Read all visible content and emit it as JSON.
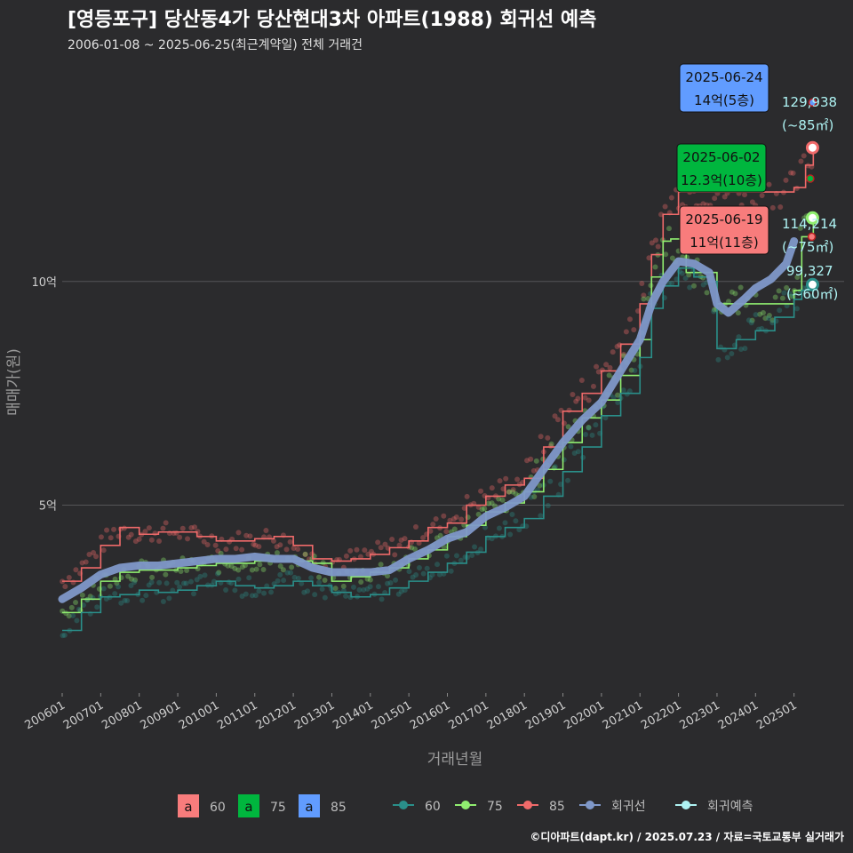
{
  "header": {
    "title": "[영등포구] 당산동4가 당산현대3차 아파트(1988) 회귀선 예측",
    "subtitle": "2006-01-08 ~ 2025-06-25(최근계약일) 전체 거래건"
  },
  "caption": "©디아파트(dapt.kr) / 2025.07.23 / 자료=국토교통부 실거래가",
  "colors": {
    "background": "#2b2b2d",
    "s60": "#2a8f8a",
    "s75": "#90ee70",
    "s85": "#f06a6a",
    "regression": "#7f98c9",
    "forecast": "#aef3f3",
    "label60": "#f87c7c",
    "label75": "#00b63e",
    "label85": "#619cff"
  },
  "chart_data": {
    "type": "line",
    "title": "[영등포구] 당산동4가 당산현대3차 아파트(1988) 회귀선 예측",
    "xlabel": "거래년월",
    "ylabel": "매매가(원)",
    "x_ticks": [
      "200601",
      "200701",
      "200801",
      "200901",
      "201001",
      "201101",
      "201201",
      "201301",
      "201401",
      "201501",
      "201601",
      "201701",
      "201801",
      "201901",
      "202001",
      "202101",
      "202201",
      "202301",
      "202401",
      "202501"
    ],
    "x_range": [
      2006.0,
      2026.3
    ],
    "ylim": [
      0.8,
      15.1
    ],
    "y_ticks": [
      {
        "value": 5,
        "label": "5억"
      },
      {
        "value": 10,
        "label": "10억"
      }
    ],
    "series": [
      {
        "name": "85",
        "key": "s85",
        "x": [
          2006.0,
          2006.5,
          2007.0,
          2007.5,
          2008.0,
          2008.5,
          2009.0,
          2009.5,
          2010.0,
          2010.5,
          2011.0,
          2011.5,
          2012.0,
          2012.5,
          2013.0,
          2013.5,
          2014.0,
          2014.5,
          2015.0,
          2015.5,
          2016.0,
          2016.5,
          2017.0,
          2017.5,
          2018.0,
          2018.5,
          2019.0,
          2019.5,
          2020.0,
          2020.5,
          2021.0,
          2021.3,
          2021.6,
          2022.0,
          2022.3,
          2022.6,
          2023.0,
          2023.5,
          2024.0,
          2024.5,
          2025.0,
          2025.3,
          2025.5
        ],
        "values": [
          3.3,
          3.6,
          4.1,
          4.5,
          4.35,
          4.4,
          4.4,
          4.3,
          4.2,
          4.2,
          4.25,
          4.3,
          4.1,
          3.8,
          3.75,
          3.8,
          3.9,
          4.05,
          4.2,
          4.5,
          4.6,
          5.0,
          5.2,
          5.45,
          5.6,
          6.3,
          7.1,
          7.5,
          8.0,
          8.6,
          9.5,
          10.6,
          11.5,
          12.0,
          12.0,
          12.0,
          12.0,
          12.0,
          12.0,
          12.0,
          12.1,
          12.6,
          12.9
        ]
      },
      {
        "name": "75",
        "key": "s75",
        "x": [
          2006.0,
          2006.5,
          2007.0,
          2007.5,
          2008.0,
          2008.5,
          2009.0,
          2009.5,
          2010.0,
          2010.5,
          2011.0,
          2011.5,
          2012.0,
          2012.5,
          2013.0,
          2013.5,
          2014.0,
          2014.5,
          2015.0,
          2015.5,
          2016.0,
          2016.5,
          2017.0,
          2017.5,
          2018.0,
          2018.5,
          2019.0,
          2019.5,
          2020.0,
          2020.5,
          2021.0,
          2021.3,
          2021.6,
          2021.8,
          2022.2,
          2022.6,
          2023.0,
          2023.5,
          2024.0,
          2024.5,
          2024.9,
          2025.0,
          2025.2,
          2025.5
        ],
        "values": [
          2.6,
          2.9,
          3.3,
          3.5,
          3.55,
          3.55,
          3.6,
          3.65,
          3.7,
          3.7,
          3.75,
          3.75,
          3.75,
          3.7,
          3.3,
          3.4,
          3.5,
          3.6,
          3.8,
          4.0,
          4.3,
          4.55,
          4.85,
          5.05,
          5.3,
          5.8,
          6.4,
          6.95,
          7.35,
          7.9,
          8.7,
          10.1,
          10.9,
          10.95,
          10.2,
          10.2,
          9.5,
          9.5,
          9.5,
          9.5,
          9.5,
          9.8,
          11.0,
          11.4
        ]
      },
      {
        "name": "60",
        "key": "s60",
        "x": [
          2006.0,
          2006.5,
          2007.0,
          2007.5,
          2008.0,
          2008.5,
          2009.0,
          2009.5,
          2010.0,
          2010.5,
          2011.0,
          2011.5,
          2012.0,
          2012.5,
          2013.0,
          2013.5,
          2014.0,
          2014.5,
          2015.0,
          2015.5,
          2016.0,
          2016.5,
          2017.0,
          2017.5,
          2018.0,
          2018.5,
          2019.0,
          2019.5,
          2020.0,
          2020.5,
          2021.0,
          2021.3,
          2021.6,
          2022.0,
          2022.4,
          2022.8,
          2023.0,
          2023.5,
          2024.0,
          2024.5,
          2025.0,
          2025.2,
          2025.5
        ],
        "values": [
          2.2,
          2.6,
          2.95,
          3.0,
          3.1,
          3.05,
          3.1,
          3.2,
          3.3,
          3.2,
          3.15,
          3.2,
          3.3,
          3.2,
          3.05,
          2.95,
          3.0,
          3.15,
          3.3,
          3.5,
          3.7,
          3.95,
          4.3,
          4.5,
          4.7,
          5.2,
          5.75,
          6.3,
          7.0,
          7.5,
          8.3,
          9.4,
          9.9,
          10.3,
          10.1,
          10.0,
          8.5,
          8.7,
          8.9,
          9.2,
          9.6,
          9.8,
          9.95
        ]
      }
    ],
    "regression": {
      "name": "회귀선",
      "x": [
        2006.0,
        2006.5,
        2007.0,
        2007.5,
        2008.0,
        2008.5,
        2009.0,
        2009.5,
        2010.0,
        2010.5,
        2011.0,
        2011.5,
        2012.0,
        2012.5,
        2013.0,
        2013.5,
        2014.0,
        2014.5,
        2015.0,
        2015.5,
        2016.0,
        2016.5,
        2017.0,
        2017.5,
        2018.0,
        2018.5,
        2019.0,
        2019.5,
        2020.0,
        2020.5,
        2021.0,
        2021.3,
        2021.6,
        2022.0,
        2022.4,
        2022.8,
        2023.0,
        2023.3,
        2023.7,
        2024.0,
        2024.4,
        2024.8,
        2025.0
      ],
      "values": [
        2.9,
        3.15,
        3.45,
        3.6,
        3.65,
        3.65,
        3.7,
        3.75,
        3.8,
        3.8,
        3.85,
        3.8,
        3.8,
        3.6,
        3.5,
        3.5,
        3.5,
        3.55,
        3.8,
        4.0,
        4.25,
        4.4,
        4.75,
        4.95,
        5.2,
        5.8,
        6.4,
        6.9,
        7.3,
        8.0,
        8.7,
        9.5,
        10.0,
        10.45,
        10.4,
        10.2,
        9.5,
        9.3,
        9.6,
        9.85,
        10.05,
        10.4,
        10.9
      ]
    },
    "forecast_points": [
      {
        "series": "85",
        "x": 2025.48,
        "value": 12.99
      },
      {
        "series": "75",
        "x": 2025.48,
        "value": 11.42
      },
      {
        "series": "60",
        "x": 2025.48,
        "value": 9.93
      }
    ],
    "annotations": [
      {
        "date": "2025-06-24",
        "price": "14억(5층)",
        "series": "85",
        "x": 2025.48,
        "value": 14.0
      },
      {
        "date": "2025-06-02",
        "price": "12.3억(10층)",
        "series": "75",
        "x": 2025.42,
        "value": 12.3
      },
      {
        "date": "2025-06-19",
        "price": "11억(11층)",
        "series": "60",
        "x": 2025.46,
        "value": 11.0
      }
    ],
    "end_labels": [
      {
        "value_text": "129,938",
        "size_text": "(~85㎡)"
      },
      {
        "value_text": "114,214",
        "size_text": "(~75㎡)"
      },
      {
        "value_text": "99,327",
        "size_text": "(~60㎡)"
      }
    ],
    "legend": {
      "position": "bottom",
      "label_group": [
        {
          "glyph": "a",
          "name": "60",
          "key": "label60"
        },
        {
          "glyph": "a",
          "name": "75",
          "key": "label75"
        },
        {
          "glyph": "a",
          "name": "85",
          "key": "label85"
        }
      ],
      "line_group": [
        {
          "name": "60",
          "key": "s60"
        },
        {
          "name": "75",
          "key": "s75"
        },
        {
          "name": "85",
          "key": "s85"
        },
        {
          "name": "회귀선",
          "key": "regression"
        },
        {
          "name": "회귀예측",
          "key": "forecast"
        }
      ]
    }
  }
}
